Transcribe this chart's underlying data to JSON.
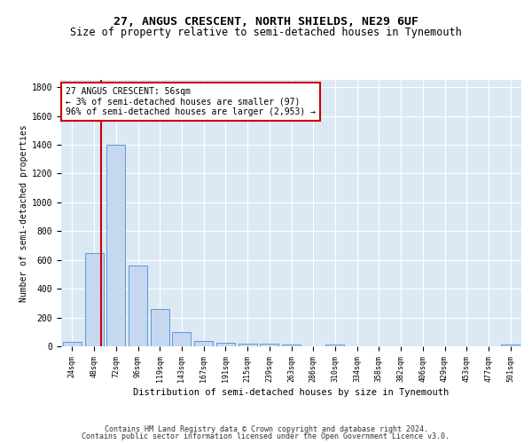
{
  "title1": "27, ANGUS CRESCENT, NORTH SHIELDS, NE29 6UF",
  "title2": "Size of property relative to semi-detached houses in Tynemouth",
  "xlabel": "Distribution of semi-detached houses by size in Tynemouth",
  "ylabel": "Number of semi-detached properties",
  "categories": [
    "24sqm",
    "48sqm",
    "72sqm",
    "96sqm",
    "119sqm",
    "143sqm",
    "167sqm",
    "191sqm",
    "215sqm",
    "239sqm",
    "263sqm",
    "286sqm",
    "310sqm",
    "334sqm",
    "358sqm",
    "382sqm",
    "406sqm",
    "429sqm",
    "453sqm",
    "477sqm",
    "501sqm"
  ],
  "values": [
    30,
    650,
    1400,
    560,
    260,
    100,
    35,
    25,
    20,
    20,
    15,
    0,
    15,
    0,
    0,
    0,
    0,
    0,
    0,
    0,
    15
  ],
  "bar_color": "#c5d8f0",
  "bar_edge_color": "#5b9bd5",
  "annotation_box_text_line1": "27 ANGUS CRESCENT: 56sqm",
  "annotation_box_text_line2": "← 3% of semi-detached houses are smaller (97)",
  "annotation_box_text_line3": "96% of semi-detached houses are larger (2,953) →",
  "annotation_box_color": "#ffffff",
  "annotation_box_edge_color": "#cc0000",
  "vline_color": "#cc0000",
  "ylim": [
    0,
    1850
  ],
  "yticks": [
    0,
    200,
    400,
    600,
    800,
    1000,
    1200,
    1400,
    1600,
    1800
  ],
  "background_color": "#dce9f5",
  "footer_line1": "Contains HM Land Registry data © Crown copyright and database right 2024.",
  "footer_line2": "Contains public sector information licensed under the Open Government Licence v3.0.",
  "title1_fontsize": 9.5,
  "title2_fontsize": 8.5,
  "bar_fontsize": 7,
  "ylabel_fontsize": 7,
  "xlabel_fontsize": 7.5,
  "ytick_fontsize": 7,
  "xtick_fontsize": 6,
  "footer_fontsize": 6,
  "annot_fontsize": 7
}
